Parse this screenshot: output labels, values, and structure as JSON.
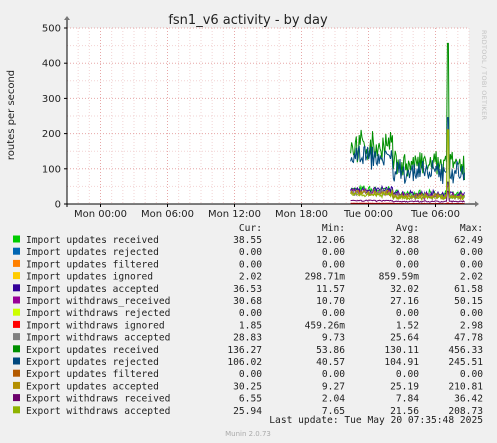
{
  "chart_data": {
    "type": "line",
    "title": "fsn1_v6 activity - by day",
    "ylabel": "routes per second",
    "ylim": [
      0,
      500
    ],
    "yticks": [
      "0",
      "100",
      "200",
      "300",
      "400",
      "500"
    ],
    "xlim_hours": [
      -3,
      33
    ],
    "xticks": [
      {
        "label": "Mon 00:00",
        "hour": 0
      },
      {
        "label": "Mon 06:00",
        "hour": 6
      },
      {
        "label": "Mon 12:00",
        "hour": 12
      },
      {
        "label": "Mon 18:00",
        "hour": 18
      },
      {
        "label": "Tue 00:00",
        "hour": 24
      },
      {
        "label": "Tue 06:00",
        "hour": 30
      }
    ],
    "columns": [
      "Cur:",
      "Min:",
      "Avg:",
      "Max:"
    ],
    "series": [
      {
        "name": "Import updates received",
        "color": "#00cc00",
        "cur": "38.55",
        "min": "12.06",
        "avg": "32.88",
        "max": "62.49"
      },
      {
        "name": "Import updates rejected",
        "color": "#0066b3",
        "cur": "0.00",
        "min": "0.00",
        "avg": "0.00",
        "max": "0.00"
      },
      {
        "name": "Import updates filtered",
        "color": "#ff8000",
        "cur": "0.00",
        "min": "0.00",
        "avg": "0.00",
        "max": "0.00"
      },
      {
        "name": "Import updates ignored",
        "color": "#ffcc00",
        "cur": "2.02",
        "min": "298.71m",
        "avg": "859.59m",
        "max": "2.02"
      },
      {
        "name": "Import updates accepted",
        "color": "#330099",
        "cur": "36.53",
        "min": "11.57",
        "avg": "32.02",
        "max": "61.58"
      },
      {
        "name": "Import withdraws_received",
        "color": "#990099",
        "cur": "30.68",
        "min": "10.70",
        "avg": "27.16",
        "max": "50.15"
      },
      {
        "name": "Import withdraws rejected",
        "color": "#ccff00",
        "cur": "0.00",
        "min": "0.00",
        "avg": "0.00",
        "max": "0.00"
      },
      {
        "name": "Import withdraws ignored",
        "color": "#ff0000",
        "cur": "1.85",
        "min": "459.26m",
        "avg": "1.52",
        "max": "2.98"
      },
      {
        "name": "Import withdraws accepted",
        "color": "#808080",
        "cur": "28.83",
        "min": "9.73",
        "avg": "25.64",
        "max": "47.78"
      },
      {
        "name": "Export updates received",
        "color": "#008f00",
        "cur": "136.27",
        "min": "53.86",
        "avg": "130.11",
        "max": "456.33"
      },
      {
        "name": "Export updates rejected",
        "color": "#00487d",
        "cur": "106.02",
        "min": "40.57",
        "avg": "104.91",
        "max": "245.51"
      },
      {
        "name": "Export updates filtered",
        "color": "#b35a00",
        "cur": "0.00",
        "min": "0.00",
        "avg": "0.00",
        "max": "0.00"
      },
      {
        "name": "Export updates accepted",
        "color": "#b38f00",
        "cur": "30.25",
        "min": "9.27",
        "avg": "25.19",
        "max": "210.81"
      },
      {
        "name": "Export withdraws received",
        "color": "#6b006b",
        "cur": "6.55",
        "min": "2.04",
        "avg": "7.84",
        "max": "36.42"
      },
      {
        "name": "Export withdraws accepted",
        "color": "#8fb300",
        "cur": "25.94",
        "min": "7.65",
        "avg": "21.56",
        "max": "208.73"
      }
    ]
  },
  "last_update": "Last update: Tue May 20 07:35:48 2025",
  "footer": "Munin 2.0.73",
  "side_label": "RRDTOOL / TOBI OETIKER"
}
